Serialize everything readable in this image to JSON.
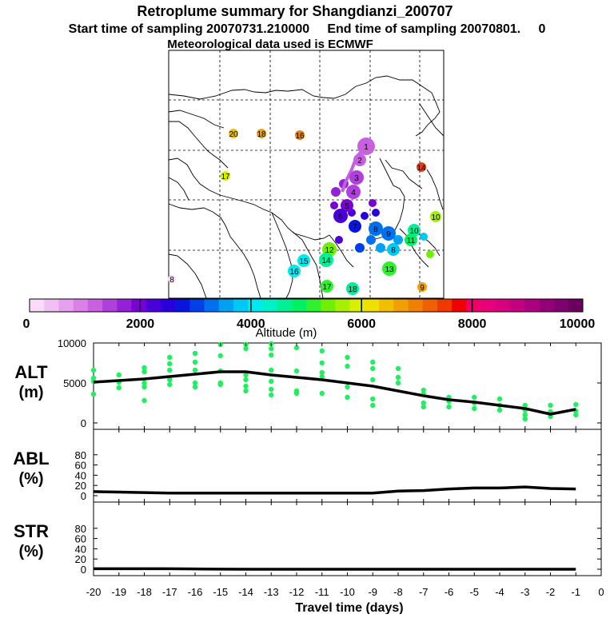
{
  "header": {
    "title": "Retroplume summary for Shangdianzi_200707",
    "sampling": "Start time of sampling 20070731.210000     End time of sampling 20070801.     0",
    "met": "Meteorological data used is ECMWF"
  },
  "map": {
    "plume_points": [
      {
        "label": "1",
        "alt": 1200
      },
      {
        "label": "2",
        "alt": 1300
      },
      {
        "label": "3",
        "alt": 1400
      },
      {
        "label": "4",
        "alt": 1500
      },
      {
        "label": "5",
        "alt": 1900
      },
      {
        "label": "6",
        "alt": 2200
      },
      {
        "label": "7",
        "alt": 2700
      },
      {
        "label": "8",
        "alt": 3400
      },
      {
        "label": "9",
        "alt": 3200
      },
      {
        "label": "10",
        "alt": 4600
      },
      {
        "label": "11",
        "alt": 4800
      },
      {
        "label": "12",
        "alt": 5400
      },
      {
        "label": "13",
        "alt": 5200
      },
      {
        "label": "14",
        "alt": 4500
      },
      {
        "label": "15",
        "alt": 4100
      },
      {
        "label": "16",
        "alt": 4200
      },
      {
        "label": "17",
        "alt": 5000
      },
      {
        "label": "18",
        "alt": 4600
      },
      {
        "label": "14",
        "alt": 7600
      },
      {
        "label": "16",
        "alt": 7000
      },
      {
        "label": "18",
        "alt": 6800
      },
      {
        "label": "20",
        "alt": 6500
      },
      {
        "label": "17",
        "alt": 5800
      },
      {
        "label": "9",
        "alt": 6700
      },
      {
        "label": "8",
        "alt": 3800
      },
      {
        "label": "10",
        "alt": 5600
      },
      {
        "label": "8",
        "alt": 100
      }
    ]
  },
  "colorbar": {
    "ticks": [
      "0",
      "2000",
      "4000",
      "6000",
      "8000",
      "10000"
    ],
    "label": "Altitude (m)",
    "colors": [
      "#f8dcfa",
      "#f0c0f4",
      "#e6a0ee",
      "#da80e6",
      "#c860e0",
      "#b040dc",
      "#9420d8",
      "#7a00d4",
      "#4a00d8",
      "#2800dc",
      "#0a14e0",
      "#0040e8",
      "#0070f0",
      "#00a0f4",
      "#00c8f4",
      "#00e8f0",
      "#00f0c8",
      "#00f096",
      "#00f064",
      "#30f030",
      "#70f000",
      "#a8f000",
      "#d8f000",
      "#f0e000",
      "#f0c000",
      "#f0a000",
      "#f08000",
      "#f06000",
      "#f03800",
      "#f00000",
      "#f0006a",
      "#e8007a",
      "#d8007e",
      "#c40080",
      "#ac0080",
      "#940078",
      "#800070",
      "#6a0060"
    ]
  },
  "chart_data": {
    "type": "line",
    "x": [
      -20,
      -19,
      -18,
      -17,
      -16,
      -15,
      -14,
      -13,
      -12,
      -11,
      -10,
      -9,
      -8,
      -7,
      -6,
      -5,
      -4,
      -3,
      -2,
      -1
    ],
    "xlabel": "Travel time (days)",
    "xticks": [
      "-20",
      "-19",
      "-18",
      "-17",
      "-16",
      "-15",
      "-14",
      "-13",
      "-12",
      "-11",
      "-10",
      "-9",
      "-8",
      "-7",
      "-6",
      "-5",
      "-4",
      "-3",
      "-2",
      "-1",
      "0"
    ],
    "xlim": [
      -20,
      0
    ],
    "panels": [
      {
        "name": "ALT",
        "ylabel": "ALT",
        "yunit": "(m)",
        "ylim": [
          0,
          10000
        ],
        "yticks": [
          "10000",
          "5000",
          "0"
        ],
        "line": [
          5100,
          5300,
          5500,
          5800,
          6100,
          6400,
          6400,
          6000,
          5700,
          5400,
          5000,
          4600,
          4000,
          3400,
          2900,
          2600,
          2200,
          1800,
          1100,
          1700
        ],
        "scatter": [
          [
            -20,
            6600
          ],
          [
            -20,
            5600
          ],
          [
            -20,
            5200
          ],
          [
            -20,
            3600
          ],
          [
            -19,
            6000
          ],
          [
            -19,
            5100
          ],
          [
            -19,
            4400
          ],
          [
            -18,
            6900
          ],
          [
            -18,
            6400
          ],
          [
            -18,
            5000
          ],
          [
            -18,
            4500
          ],
          [
            -18,
            2800
          ],
          [
            -17,
            8200
          ],
          [
            -17,
            7400
          ],
          [
            -17,
            6600
          ],
          [
            -17,
            5400
          ],
          [
            -17,
            4800
          ],
          [
            -16,
            8700
          ],
          [
            -16,
            7600
          ],
          [
            -16,
            6600
          ],
          [
            -16,
            5000
          ],
          [
            -16,
            4500
          ],
          [
            -15,
            9800
          ],
          [
            -15,
            8400
          ],
          [
            -15,
            6500
          ],
          [
            -15,
            5000
          ],
          [
            -15,
            4800
          ],
          [
            -14,
            9800
          ],
          [
            -14,
            9300
          ],
          [
            -14,
            6000
          ],
          [
            -14,
            5400
          ],
          [
            -14,
            4600
          ],
          [
            -14,
            4000
          ],
          [
            -13,
            9900
          ],
          [
            -13,
            9300
          ],
          [
            -13,
            8500
          ],
          [
            -13,
            6600
          ],
          [
            -13,
            5200
          ],
          [
            -13,
            4200
          ],
          [
            -13,
            3500
          ],
          [
            -12,
            9400
          ],
          [
            -12,
            6500
          ],
          [
            -12,
            4000
          ],
          [
            -12,
            3700
          ],
          [
            -11,
            9000
          ],
          [
            -11,
            7500
          ],
          [
            -11,
            6300
          ],
          [
            -11,
            5800
          ],
          [
            -11,
            3700
          ],
          [
            -10,
            8200
          ],
          [
            -10,
            7100
          ],
          [
            -10,
            4500
          ],
          [
            -10,
            3200
          ],
          [
            -9,
            7600
          ],
          [
            -9,
            6800
          ],
          [
            -9,
            5400
          ],
          [
            -9,
            3000
          ],
          [
            -9,
            2200
          ],
          [
            -8,
            6800
          ],
          [
            -8,
            5700
          ],
          [
            -8,
            5000
          ],
          [
            -7,
            4100
          ],
          [
            -7,
            3600
          ],
          [
            -7,
            2500
          ],
          [
            -7,
            2000
          ],
          [
            -6,
            3200
          ],
          [
            -6,
            2700
          ],
          [
            -6,
            2000
          ],
          [
            -5,
            3200
          ],
          [
            -5,
            2500
          ],
          [
            -5,
            1800
          ],
          [
            -4,
            3000
          ],
          [
            -4,
            2200
          ],
          [
            -4,
            1600
          ],
          [
            -3,
            2200
          ],
          [
            -3,
            1600
          ],
          [
            -3,
            1000
          ],
          [
            -3,
            500
          ],
          [
            -2,
            2200
          ],
          [
            -2,
            1400
          ],
          [
            -2,
            800
          ],
          [
            -1,
            2300
          ],
          [
            -1,
            1500
          ],
          [
            -1,
            1000
          ]
        ]
      },
      {
        "name": "ABL",
        "ylabel": "ABL",
        "yunit": "(%)",
        "ylim": [
          0,
          100
        ],
        "yticks": [
          "80",
          "60",
          "40",
          "20",
          "0"
        ],
        "line": [
          8,
          7,
          6,
          5,
          5,
          5,
          5,
          5,
          5,
          5,
          5,
          5,
          9,
          10,
          13,
          15,
          15,
          17,
          14,
          13
        ]
      },
      {
        "name": "STR",
        "ylabel": "STR",
        "yunit": "(%)",
        "ylim": [
          0,
          100
        ],
        "yticks": [
          "80",
          "60",
          "40",
          "20",
          "0"
        ],
        "line": [
          1,
          1,
          1,
          1,
          0.5,
          0.2,
          0,
          0,
          0,
          0,
          0,
          0,
          0,
          0,
          0,
          0,
          0,
          0,
          0,
          0
        ]
      }
    ]
  }
}
